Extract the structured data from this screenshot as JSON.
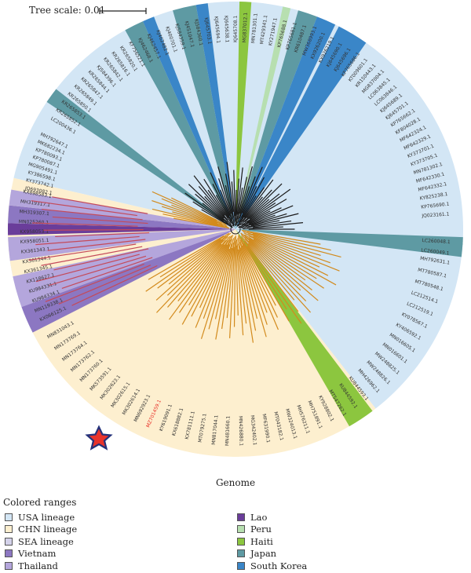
{
  "scale_bar": {
    "label": "Tree scale: 0.01"
  },
  "caption": "Genome",
  "legend": {
    "title": "Colored ranges",
    "items": [
      {
        "label": "USA lineage",
        "color": "#d3e6f5"
      },
      {
        "label": "CHN lineage",
        "color": "#fdefcf"
      },
      {
        "label": "SEA lineage",
        "color": "#d4d2ea"
      },
      {
        "label": "Vietnam",
        "color": "#8c77c2"
      },
      {
        "label": "Thailand",
        "color": "#b4a6dc"
      },
      {
        "label": "Lao",
        "color": "#6a3d9a"
      },
      {
        "label": "Peru",
        "color": "#b7dfb0"
      },
      {
        "label": "Haiti",
        "color": "#8cc63f"
      },
      {
        "label": "Japan",
        "color": "#5e9aa3"
      },
      {
        "label": "South Korea",
        "color": "#3a86c8"
      }
    ]
  },
  "highlighted_taxon": {
    "label": "MZ701459.1",
    "color": "#e8332a",
    "marker": "star-icon"
  },
  "taxa": {
    "usa": [
      "LC200436.1",
      "KR265852.1",
      "KR265853.1",
      "KR265850.1",
      "KR265849.1",
      "KR265847.1",
      "KR265844.1",
      "KJ584396.1",
      "KR265842.1",
      "KR265816.1",
      "KR265820.1",
      "KF756521.1",
      "KJ462468.1",
      "KJ462457.1",
      "KJ462482.1",
      "KJ400701.1",
      "KJ584359.1",
      "KJ451047.1",
      "KJ584360.1",
      "KJ645703.1",
      "KJ645694.1",
      "KJ645638.1",
      "KJ645708.1",
      "MG837012.1",
      "MN781301.1",
      "MT429341.1",
      "KY271947.1",
      "KP765688.1",
      "KP765681.1",
      "KR610487.1",
      "MW368993.1",
      "KX926200.1",
      "KX926219.1",
      "KJ645690.1",
      "KJ645696.1",
      "KP765686.1",
      "KT009601.1",
      "KR150443.1",
      "MG837004.1",
      "LC063845.1",
      "LC063846.1",
      "KJ645689.1",
      "KJ645701.1",
      "KP765662.1",
      "KF804028.1",
      "MF642324.1",
      "MF642329.1",
      "KY373701.1",
      "KY373705.1",
      "MN781302.1",
      "MF642330.1",
      "MF642332.1",
      "KY825238.1",
      "KP765690.1",
      "JQ023161.1"
    ],
    "sea": [
      "KX066125.1",
      "MN119338.1",
      "KU984334.1",
      "KU984331.1",
      "KX118627.1",
      "KX361345.1",
      "KX361344.1",
      "KX361343.1",
      "KX958051.1",
      "KX958053.1",
      "MN025260.1",
      "MH319307.1",
      "MH319317.1",
      "KX898583.1"
    ],
    "chn": [
      "MN831043.1",
      "MN173769.1",
      "MN173764.1",
      "MN173762.1",
      "MN173760.1",
      "MK573591.1",
      "MK302623.1",
      "MK302615.1",
      "MK302614.1",
      "MN692923.1",
      "MZ701459.1",
      "KY619091.1",
      "KX618882.1",
      "KX781111.1",
      "MT079275.1",
      "MN817044.1",
      "MN481660.1",
      "MN426880.1",
      "MG342402.1",
      "MF631990.1",
      "MT043182.1",
      "MW324013.1",
      "MH576211.1",
      "MH751891.1",
      "KY928802.1",
      "MT547262.1",
      "KU844592.1",
      "KU844593.1",
      "MH426962.1",
      "MW248826.1",
      "MW248825.1",
      "MN016601.1",
      "MN016605.1",
      "KY406592.1",
      "KY078567.1",
      "LC212519.1",
      "LC212514.1",
      "MT780548.1",
      "MT780587.1",
      "MH792631.1",
      "MH792647.1",
      "MK682234.1",
      "KP780093.1",
      "KP780087.1",
      "MG905491.1",
      "KY386598.1",
      "KY373742.1",
      "JQ693082.1"
    ],
    "japan_lower": [
      "LC260048.1",
      "LC260049.1"
    ]
  }
}
